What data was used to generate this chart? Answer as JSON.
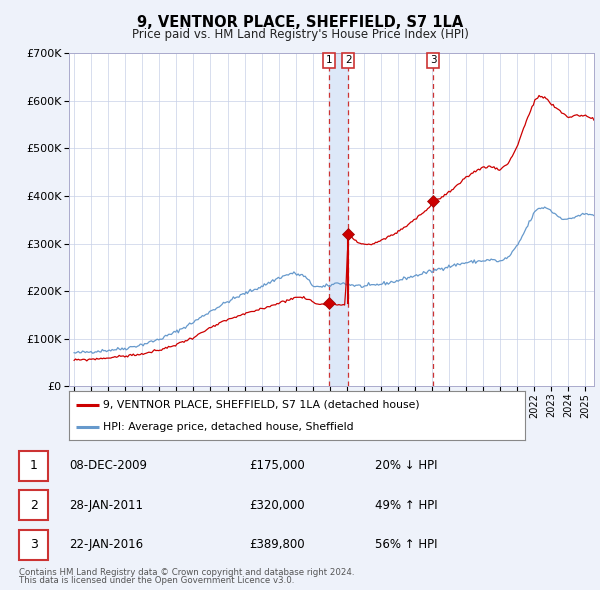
{
  "title": "9, VENTNOR PLACE, SHEFFIELD, S7 1LA",
  "subtitle": "Price paid vs. HM Land Registry's House Price Index (HPI)",
  "legend_line1": "9, VENTNOR PLACE, SHEFFIELD, S7 1LA (detached house)",
  "legend_line2": "HPI: Average price, detached house, Sheffield",
  "footer1": "Contains HM Land Registry data © Crown copyright and database right 2024.",
  "footer2": "This data is licensed under the Open Government Licence v3.0.",
  "transactions": [
    {
      "num": "1",
      "date": "08-DEC-2009",
      "price": "£175,000",
      "pct": "20% ↓ HPI",
      "date_num": 2009.94,
      "price_val": 175000
    },
    {
      "num": "2",
      "date": "28-JAN-2011",
      "price": "£320,000",
      "pct": "49% ↑ HPI",
      "date_num": 2011.08,
      "price_val": 320000
    },
    {
      "num": "3",
      "date": "22-JAN-2016",
      "price": "£389,800",
      "pct": "56% ↑ HPI",
      "date_num": 2016.07,
      "price_val": 389800
    }
  ],
  "red_color": "#cc0000",
  "blue_color": "#6699cc",
  "background_color": "#eef2fa",
  "plot_bg_color": "#ffffff",
  "grid_color": "#c8d0e8",
  "highlight_color": "#dde8f8",
  "vline_color": "#cc3333",
  "ylim": [
    0,
    700000
  ],
  "yticks": [
    0,
    100000,
    200000,
    300000,
    400000,
    500000,
    600000,
    700000
  ],
  "xlim_start": 1994.7,
  "xlim_end": 2025.5,
  "hpi_waypoints": [
    [
      1995.0,
      70000
    ],
    [
      1996.0,
      73000
    ],
    [
      1997.0,
      76000
    ],
    [
      1998.0,
      80000
    ],
    [
      1999.0,
      88000
    ],
    [
      2000.0,
      99000
    ],
    [
      2001.0,
      115000
    ],
    [
      2002.0,
      135000
    ],
    [
      2003.0,
      158000
    ],
    [
      2004.0,
      178000
    ],
    [
      2005.0,
      195000
    ],
    [
      2006.0,
      210000
    ],
    [
      2007.0,
      228000
    ],
    [
      2007.8,
      238000
    ],
    [
      2008.5,
      232000
    ],
    [
      2009.0,
      212000
    ],
    [
      2009.5,
      208000
    ],
    [
      2010.0,
      212000
    ],
    [
      2010.5,
      218000
    ],
    [
      2011.0,
      215000
    ],
    [
      2011.5,
      212000
    ],
    [
      2012.0,
      210000
    ],
    [
      2012.5,
      212000
    ],
    [
      2013.0,
      215000
    ],
    [
      2013.5,
      218000
    ],
    [
      2014.0,
      222000
    ],
    [
      2014.5,
      228000
    ],
    [
      2015.0,
      232000
    ],
    [
      2015.5,
      238000
    ],
    [
      2016.0,
      242000
    ],
    [
      2016.5,
      248000
    ],
    [
      2017.0,
      252000
    ],
    [
      2017.5,
      256000
    ],
    [
      2018.0,
      260000
    ],
    [
      2018.5,
      262000
    ],
    [
      2019.0,
      264000
    ],
    [
      2019.5,
      266000
    ],
    [
      2020.0,
      262000
    ],
    [
      2020.5,
      272000
    ],
    [
      2021.0,
      295000
    ],
    [
      2021.5,
      330000
    ],
    [
      2022.0,
      365000
    ],
    [
      2022.3,
      375000
    ],
    [
      2022.8,
      375000
    ],
    [
      2023.0,
      368000
    ],
    [
      2023.5,
      355000
    ],
    [
      2024.0,
      350000
    ],
    [
      2024.5,
      358000
    ],
    [
      2025.0,
      362000
    ],
    [
      2025.5,
      360000
    ]
  ],
  "red_waypoints": [
    [
      1995.0,
      55000
    ],
    [
      1996.0,
      57000
    ],
    [
      1997.0,
      60000
    ],
    [
      1998.0,
      64000
    ],
    [
      1999.0,
      68000
    ],
    [
      2000.0,
      76000
    ],
    [
      2001.0,
      88000
    ],
    [
      2002.0,
      103000
    ],
    [
      2003.0,
      123000
    ],
    [
      2004.0,
      140000
    ],
    [
      2005.0,
      152000
    ],
    [
      2006.0,
      163000
    ],
    [
      2007.0,
      175000
    ],
    [
      2007.8,
      185000
    ],
    [
      2008.3,
      188000
    ],
    [
      2008.8,
      182000
    ],
    [
      2009.3,
      172000
    ],
    [
      2009.94,
      175000
    ],
    [
      2010.2,
      173000
    ],
    [
      2010.6,
      172000
    ],
    [
      2010.9,
      172000
    ],
    [
      2011.08,
      320000
    ],
    [
      2011.4,
      308000
    ],
    [
      2011.8,
      300000
    ],
    [
      2012.3,
      298000
    ],
    [
      2012.8,
      302000
    ],
    [
      2013.3,
      312000
    ],
    [
      2013.8,
      320000
    ],
    [
      2014.3,
      332000
    ],
    [
      2014.8,
      346000
    ],
    [
      2015.3,
      360000
    ],
    [
      2015.8,
      374000
    ],
    [
      2016.07,
      389800
    ],
    [
      2016.5,
      395000
    ],
    [
      2017.0,
      408000
    ],
    [
      2017.5,
      422000
    ],
    [
      2018.0,
      438000
    ],
    [
      2018.5,
      452000
    ],
    [
      2019.0,
      460000
    ],
    [
      2019.5,
      462000
    ],
    [
      2020.0,
      455000
    ],
    [
      2020.5,
      470000
    ],
    [
      2021.0,
      505000
    ],
    [
      2021.5,
      555000
    ],
    [
      2022.0,
      598000
    ],
    [
      2022.3,
      610000
    ],
    [
      2022.7,
      605000
    ],
    [
      2023.0,
      592000
    ],
    [
      2023.5,
      578000
    ],
    [
      2024.0,
      565000
    ],
    [
      2024.5,
      570000
    ],
    [
      2025.0,
      568000
    ],
    [
      2025.5,
      562000
    ]
  ]
}
